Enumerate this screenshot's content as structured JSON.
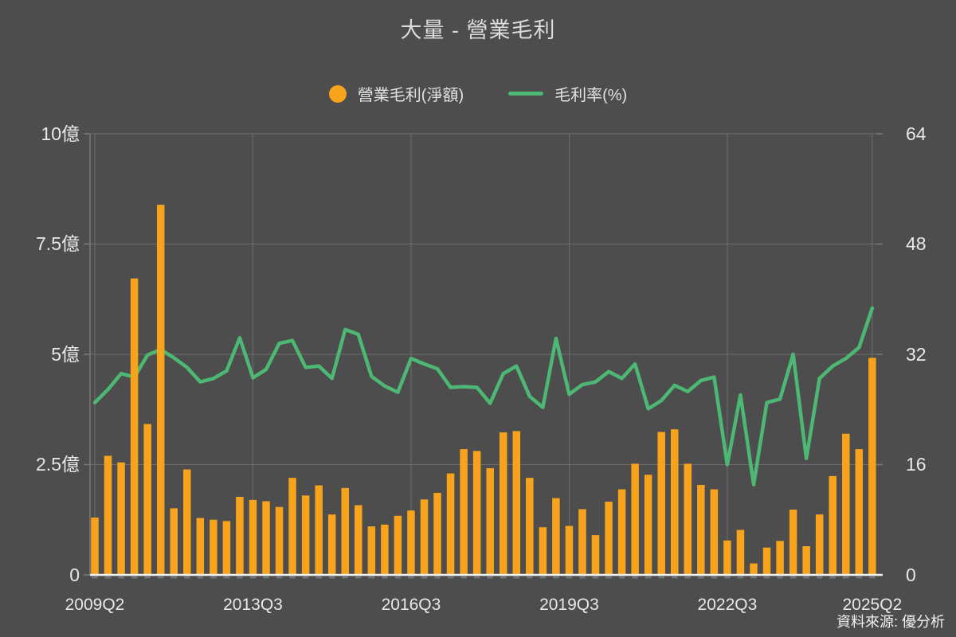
{
  "title": "大量 - 營業毛利",
  "legend": {
    "items": [
      {
        "label": "營業毛利(淨額)",
        "marker": "dot"
      },
      {
        "label": "毛利率(%)",
        "marker": "line"
      }
    ]
  },
  "source": "資料來源: 優分析",
  "colors": {
    "background": "#4d4d4d",
    "bar": "#F7A41C",
    "line": "#4DB873",
    "grid": "#6e6e6e",
    "axis_line": "#7a7a7a",
    "baseline": "#f0f0f0",
    "bar_tick": "#8f99a6",
    "axis_text": "#e8e8e8",
    "title_text": "#dcdcdc"
  },
  "chart_data": {
    "type": "bar",
    "combo": "bar+line",
    "title": "大量 - 營業毛利",
    "grid": true,
    "legend_position": "top",
    "left_axis": {
      "unit": "億",
      "min": 0,
      "max": 10,
      "ticks": [
        "0",
        "2.5億",
        "5億",
        "7.5億",
        "10億"
      ]
    },
    "right_axis": {
      "unit": "%",
      "min": 0,
      "max": 64,
      "ticks": [
        "0",
        "16",
        "32",
        "48",
        "64"
      ]
    },
    "x_ticks": [
      {
        "label": "2009Q2",
        "bar_index": 0
      },
      {
        "label": "2013Q3",
        "bar_index": 12
      },
      {
        "label": "2016Q3",
        "bar_index": 24
      },
      {
        "label": "2019Q3",
        "bar_index": 36
      },
      {
        "label": "2022Q3",
        "bar_index": 48
      },
      {
        "label": "2025Q2",
        "bar_index": 59
      }
    ],
    "series": [
      {
        "name": "營業毛利(淨額)",
        "type": "bar",
        "axis": "left",
        "unit": "億",
        "values": [
          1.3,
          2.7,
          2.55,
          6.72,
          3.42,
          8.39,
          1.51,
          2.39,
          1.29,
          1.25,
          1.22,
          1.77,
          1.7,
          1.67,
          1.54,
          2.2,
          1.8,
          2.03,
          1.37,
          1.97,
          1.58,
          1.1,
          1.14,
          1.34,
          1.46,
          1.71,
          1.86,
          2.3,
          2.85,
          2.81,
          2.42,
          3.23,
          3.26,
          2.2,
          1.08,
          1.74,
          1.11,
          1.49,
          0.9,
          1.66,
          1.94,
          2.52,
          2.27,
          3.24,
          3.3,
          2.52,
          2.04,
          1.94,
          0.78,
          1.02,
          0.26,
          0.62,
          0.77,
          1.48,
          0.65,
          1.37,
          2.24,
          3.2,
          2.85,
          4.92
        ]
      },
      {
        "name": "毛利率(%)",
        "type": "line",
        "axis": "right",
        "unit": "%",
        "values": [
          25.0,
          26.9,
          29.2,
          28.7,
          31.9,
          32.7,
          31.5,
          30.1,
          28.0,
          28.5,
          29.6,
          34.4,
          28.6,
          29.8,
          33.6,
          34.0,
          30.1,
          30.3,
          28.5,
          35.6,
          34.9,
          28.8,
          27.4,
          26.5,
          31.4,
          30.6,
          29.9,
          27.2,
          27.3,
          27.2,
          24.9,
          29.2,
          30.3,
          25.9,
          24.3,
          34.3,
          26.2,
          27.6,
          28.0,
          29.5,
          28.5,
          30.6,
          24.1,
          25.3,
          27.5,
          26.6,
          28.2,
          28.7,
          16.0,
          26.1,
          13.1,
          25.0,
          25.5,
          32.0,
          16.9,
          28.5,
          30.3,
          31.4,
          33.0,
          38.7
        ]
      }
    ]
  }
}
